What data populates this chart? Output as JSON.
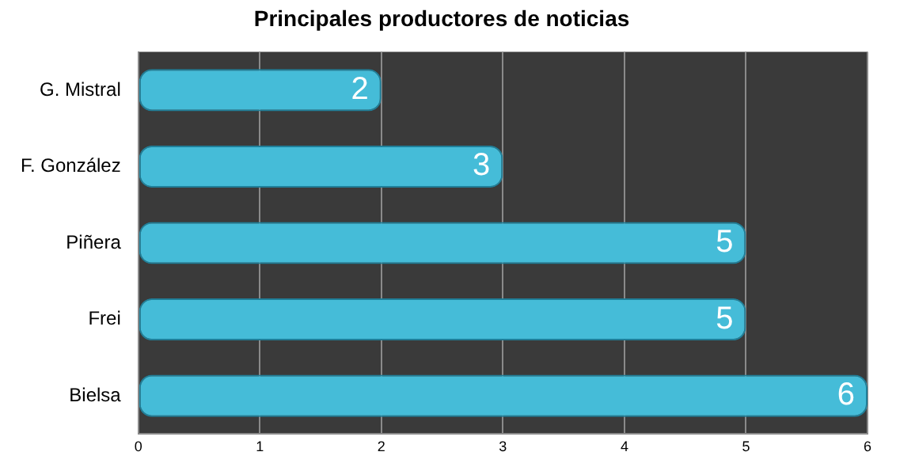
{
  "chart_data": {
    "type": "bar",
    "orientation": "horizontal",
    "title": "Principales productores de noticias",
    "categories": [
      "G. Mistral",
      "F. González",
      "Piñera",
      "Frei",
      "Bielsa"
    ],
    "values": [
      2,
      3,
      5,
      5,
      6
    ],
    "color": "#45bcd8",
    "xlim": [
      0,
      6
    ],
    "xticks": [
      0,
      1,
      2,
      3,
      4,
      5,
      6
    ],
    "grid": "x",
    "data_labels": true
  }
}
